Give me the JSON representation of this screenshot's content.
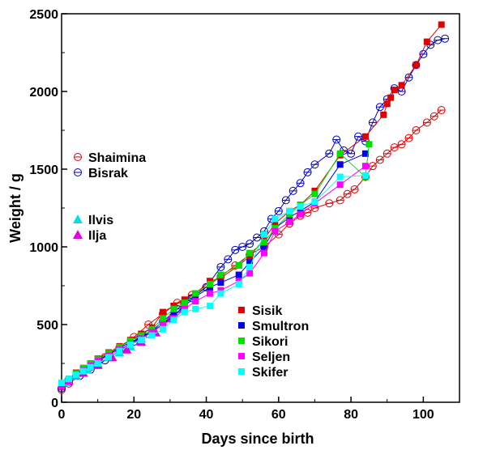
{
  "chart_data": {
    "type": "scatter",
    "xlabel": "Days since birth",
    "ylabel": "Weight / g",
    "xlim": [
      0,
      110
    ],
    "ylim": [
      0,
      2500
    ],
    "xticks": [
      "0",
      "20",
      "40",
      "60",
      "80",
      "100"
    ],
    "yticks": [
      "0",
      "500",
      "1000",
      "1500",
      "2000",
      "2500"
    ],
    "grid": false,
    "series": [
      {
        "name": "Shaimina",
        "marker": "open-circle",
        "color": "#e00000",
        "connected": true,
        "x": [
          0,
          2,
          5,
          8,
          12,
          16,
          20,
          24,
          28,
          32,
          36,
          40,
          44,
          48,
          52,
          56,
          60,
          63,
          66,
          68,
          70,
          74,
          77,
          79,
          81,
          84,
          86,
          88,
          90,
          92,
          94,
          96,
          98,
          101,
          103,
          105
        ],
        "y": [
          80,
          120,
          170,
          225,
          290,
          350,
          420,
          500,
          570,
          640,
          690,
          740,
          810,
          880,
          950,
          1000,
          1080,
          1150,
          1200,
          1220,
          1250,
          1280,
          1300,
          1340,
          1370,
          1450,
          1520,
          1560,
          1600,
          1640,
          1660,
          1700,
          1750,
          1800,
          1840,
          1880
        ]
      },
      {
        "name": "Bisrak",
        "marker": "open-circle",
        "color": "#0000c0",
        "connected": true,
        "x": [
          0,
          2,
          5,
          8,
          12,
          16,
          20,
          24,
          28,
          32,
          36,
          40,
          44,
          46,
          48,
          50,
          52,
          54,
          56,
          58,
          60,
          62,
          64,
          66,
          68,
          70,
          74,
          76,
          78,
          80,
          82,
          84,
          86,
          88,
          90,
          92,
          94,
          96,
          98,
          100,
          102,
          104,
          106
        ],
        "y": [
          90,
          130,
          170,
          210,
          270,
          330,
          390,
          440,
          520,
          600,
          670,
          740,
          870,
          920,
          980,
          1000,
          1020,
          1060,
          1100,
          1180,
          1230,
          1300,
          1360,
          1410,
          1480,
          1530,
          1600,
          1690,
          1620,
          1600,
          1710,
          1680,
          1800,
          1900,
          1950,
          2020,
          2000,
          2090,
          2170,
          2240,
          2300,
          2330,
          2340
        ]
      },
      {
        "name": "Ilvis",
        "marker": "triangle",
        "color": "#00e0e0",
        "connected": false,
        "x": [
          1,
          4,
          7,
          10,
          13,
          16,
          19,
          22,
          25,
          28,
          31
        ],
        "y": [
          130,
          170,
          210,
          250,
          290,
          320,
          360,
          410,
          460,
          520,
          580
        ]
      },
      {
        "name": "Ilja",
        "marker": "triangle",
        "color": "#e000e0",
        "connected": false,
        "x": [
          2,
          6,
          10,
          14,
          18,
          22,
          26,
          30
        ],
        "y": [
          140,
          190,
          240,
          290,
          340,
          390,
          450,
          540
        ]
      },
      {
        "name": "Sisik",
        "marker": "square",
        "color": "#e00000",
        "connected": true,
        "x": [
          0,
          2,
          4,
          6,
          8,
          10,
          13,
          16,
          19,
          22,
          25,
          28,
          31,
          34,
          37,
          41,
          44,
          49,
          52,
          56,
          59,
          63,
          66,
          70,
          77,
          84,
          89,
          90,
          91,
          92,
          94,
          98,
          101,
          105
        ],
        "y": [
          120,
          150,
          190,
          220,
          250,
          280,
          320,
          360,
          400,
          440,
          480,
          580,
          620,
          660,
          700,
          780,
          800,
          880,
          940,
          1050,
          1150,
          1230,
          1270,
          1360,
          1590,
          1710,
          1850,
          1920,
          1960,
          2010,
          2040,
          2170,
          2320,
          2430
        ]
      },
      {
        "name": "Smultron",
        "marker": "square",
        "color": "#0000e0",
        "connected": true,
        "x": [
          0,
          2,
          4,
          6,
          8,
          10,
          13,
          16,
          19,
          22,
          25,
          28,
          31,
          34,
          37,
          41,
          44,
          49,
          52,
          56,
          59,
          63,
          66,
          70,
          77,
          84
        ],
        "y": [
          110,
          140,
          180,
          215,
          245,
          270,
          310,
          350,
          385,
          420,
          460,
          500,
          560,
          620,
          680,
          740,
          770,
          820,
          900,
          1000,
          1120,
          1190,
          1230,
          1290,
          1530,
          1600
        ]
      },
      {
        "name": "Sikori",
        "marker": "square",
        "color": "#00e000",
        "connected": true,
        "x": [
          0,
          2,
          4,
          6,
          8,
          10,
          13,
          16,
          19,
          22,
          25,
          28,
          31,
          34,
          37,
          41,
          44,
          49,
          52,
          56,
          59,
          63,
          66,
          70,
          77,
          84,
          85
        ],
        "y": [
          115,
          145,
          185,
          220,
          250,
          275,
          315,
          355,
          395,
          430,
          470,
          540,
          600,
          640,
          700,
          760,
          820,
          880,
          960,
          1030,
          1120,
          1210,
          1270,
          1340,
          1600,
          1450,
          1660
        ]
      },
      {
        "name": "Seljen",
        "marker": "square",
        "color": "#ff00ff",
        "connected": true,
        "x": [
          0,
          2,
          4,
          6,
          8,
          10,
          13,
          16,
          19,
          22,
          25,
          28,
          31,
          34,
          37,
          41,
          44,
          49,
          52,
          56,
          59,
          63,
          66,
          70,
          77,
          84
        ],
        "y": [
          105,
          135,
          170,
          205,
          235,
          265,
          300,
          340,
          375,
          410,
          450,
          500,
          540,
          600,
          650,
          700,
          720,
          780,
          830,
          960,
          1100,
          1160,
          1210,
          1280,
          1400,
          1520
        ]
      },
      {
        "name": "Skifer",
        "marker": "square",
        "color": "#00ffff",
        "connected": true,
        "x": [
          0,
          2,
          4,
          6,
          8,
          10,
          13,
          16,
          19,
          22,
          25,
          28,
          31,
          34,
          37,
          41,
          44,
          49,
          52,
          56,
          59,
          63,
          66,
          70,
          77,
          84
        ],
        "y": [
          125,
          150,
          175,
          200,
          225,
          250,
          290,
          330,
          370,
          400,
          430,
          470,
          530,
          580,
          600,
          620,
          700,
          760,
          870,
          1080,
          1180,
          1230,
          1260,
          1290,
          1450,
          1460
        ]
      }
    ],
    "legend_groups": [
      {
        "position": "left-upper",
        "items": [
          "Shaimina",
          "Bisrak"
        ]
      },
      {
        "position": "left-middle",
        "items": [
          "Ilvis",
          "Ilja"
        ]
      },
      {
        "position": "lower-center",
        "items": [
          "Sisik",
          "Smultron",
          "Sikori",
          "Seljen",
          "Skifer"
        ]
      }
    ]
  }
}
